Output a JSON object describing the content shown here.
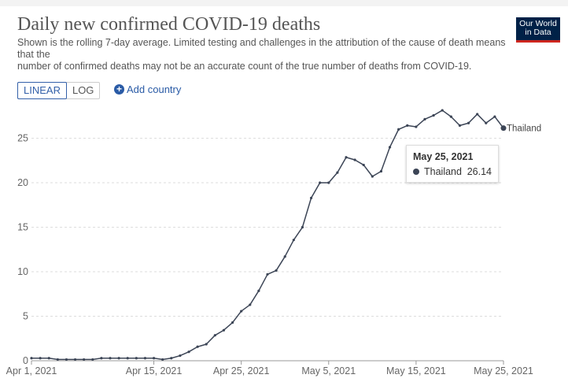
{
  "header": {
    "title": "Daily new confirmed COVID-19 deaths",
    "subtitle_line1": "Shown is the rolling 7-day average. Limited testing and challenges in the attribution of the cause of death means that the",
    "subtitle_line2": "number of confirmed deaths may not be an accurate count of the true number of deaths from COVID-19.",
    "logo_line1": "Our World",
    "logo_line2": "in Data"
  },
  "controls": {
    "linear_label": "LINEAR",
    "log_label": "LOG",
    "add_country_label": "Add country"
  },
  "tooltip": {
    "date": "May 25, 2021",
    "entity": "Thailand",
    "value": "26.14"
  },
  "colors": {
    "series": "#3c4556",
    "grid": "#dddddd",
    "axis_text": "#666666",
    "link": "#2a5ba6"
  },
  "chart_data": {
    "type": "line",
    "title": "Daily new confirmed COVID-19 deaths",
    "xlabel": "",
    "ylabel": "",
    "ylim": [
      0,
      28.5
    ],
    "y_ticks": [
      0,
      5,
      10,
      15,
      20,
      25
    ],
    "x_tick_labels": [
      "Apr 1, 2021",
      "Apr 15, 2021",
      "Apr 25, 2021",
      "May 5, 2021",
      "May 15, 2021",
      "May 25, 2021"
    ],
    "x_tick_days": [
      0,
      14,
      24,
      34,
      44,
      54
    ],
    "x_start_label": "Apr 1, 2021",
    "x_end_label": "May 25, 2021",
    "legend": "end-of-line label",
    "series": [
      {
        "name": "Thailand",
        "x_days": [
          0,
          1,
          2,
          3,
          4,
          5,
          6,
          7,
          8,
          9,
          10,
          11,
          12,
          13,
          14,
          15,
          16,
          17,
          18,
          19,
          20,
          21,
          22,
          23,
          24,
          25,
          26,
          27,
          28,
          29,
          30,
          31,
          32,
          33,
          34,
          35,
          36,
          37,
          38,
          39,
          40,
          41,
          42,
          43,
          44,
          45,
          46,
          47,
          48,
          49,
          50,
          51,
          52,
          53,
          54
        ],
        "values": [
          0.29,
          0.29,
          0.29,
          0.14,
          0.14,
          0.14,
          0.14,
          0.14,
          0.29,
          0.29,
          0.29,
          0.29,
          0.29,
          0.29,
          0.29,
          0.14,
          0.29,
          0.57,
          1.0,
          1.57,
          1.86,
          2.86,
          3.43,
          4.29,
          5.57,
          6.29,
          7.86,
          9.71,
          10.14,
          11.71,
          13.57,
          15.0,
          18.29,
          20.0,
          20.0,
          21.14,
          22.86,
          22.57,
          22.0,
          20.71,
          21.29,
          24.0,
          26.0,
          26.43,
          26.29,
          27.14,
          27.57,
          28.14,
          27.43,
          26.43,
          26.71,
          27.71,
          26.71,
          27.43,
          26.14
        ]
      }
    ]
  }
}
